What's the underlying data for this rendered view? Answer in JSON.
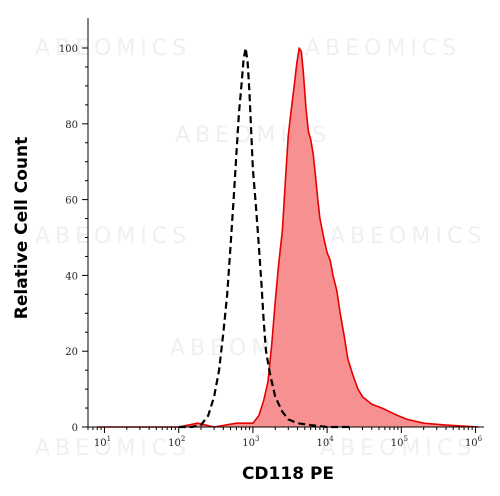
{
  "chart_data": {
    "type": "area",
    "title": "",
    "xlabel": "CD118 PE",
    "ylabel": "Relative Cell Count",
    "x_scale": "log",
    "xlim": [
      6,
      1300000
    ],
    "ylim": [
      0,
      100
    ],
    "x_ticks": [
      {
        "value": 10,
        "base": "10",
        "exp": "1"
      },
      {
        "value": 100,
        "base": "10",
        "exp": "2"
      },
      {
        "value": 1000,
        "base": "10",
        "exp": "3"
      },
      {
        "value": 10000,
        "base": "10",
        "exp": "4"
      },
      {
        "value": 100000,
        "base": "10",
        "exp": "5"
      },
      {
        "value": 1000000,
        "base": "10",
        "exp": "6"
      }
    ],
    "y_ticks": [
      0,
      20,
      40,
      60,
      80,
      100
    ],
    "grid": false,
    "watermark": "ABEOMICS",
    "series": [
      {
        "style": "dashed-black",
        "color": "#000000",
        "filled": false,
        "points": [
          [
            100,
            0
          ],
          [
            150,
            0
          ],
          [
            200,
            0.5
          ],
          [
            250,
            3
          ],
          [
            300,
            8
          ],
          [
            350,
            15
          ],
          [
            400,
            25
          ],
          [
            450,
            35
          ],
          [
            500,
            48
          ],
          [
            550,
            60
          ],
          [
            600,
            72
          ],
          [
            650,
            83
          ],
          [
            700,
            90
          ],
          [
            750,
            97
          ],
          [
            800,
            100
          ],
          [
            850,
            96
          ],
          [
            900,
            88
          ],
          [
            950,
            78
          ],
          [
            1000,
            68
          ],
          [
            1100,
            58
          ],
          [
            1200,
            48
          ],
          [
            1300,
            38
          ],
          [
            1400,
            28
          ],
          [
            1500,
            20
          ],
          [
            1700,
            14
          ],
          [
            2000,
            8
          ],
          [
            2500,
            4
          ],
          [
            3000,
            2
          ],
          [
            4000,
            1
          ],
          [
            6000,
            0.5
          ],
          [
            10000,
            0
          ],
          [
            20000,
            0
          ]
        ]
      },
      {
        "style": "filled-red",
        "color": "#e60000",
        "fill_color": "#f79090",
        "filled": true,
        "points": [
          [
            8,
            0
          ],
          [
            100,
            0
          ],
          [
            180,
            1
          ],
          [
            300,
            0
          ],
          [
            600,
            1
          ],
          [
            1000,
            1
          ],
          [
            1200,
            3
          ],
          [
            1400,
            7
          ],
          [
            1600,
            12
          ],
          [
            1800,
            22
          ],
          [
            2000,
            33
          ],
          [
            2200,
            42
          ],
          [
            2500,
            52
          ],
          [
            2800,
            68
          ],
          [
            3000,
            77
          ],
          [
            3300,
            84
          ],
          [
            3600,
            90
          ],
          [
            3900,
            96
          ],
          [
            4200,
            100
          ],
          [
            4500,
            99
          ],
          [
            4800,
            93
          ],
          [
            5200,
            84
          ],
          [
            5600,
            78
          ],
          [
            6000,
            76
          ],
          [
            6500,
            72
          ],
          [
            7000,
            66
          ],
          [
            7500,
            60
          ],
          [
            8000,
            55
          ],
          [
            9000,
            50
          ],
          [
            10000,
            46
          ],
          [
            11000,
            44
          ],
          [
            12000,
            40
          ],
          [
            13500,
            36
          ],
          [
            15000,
            30
          ],
          [
            17000,
            24
          ],
          [
            19000,
            18
          ],
          [
            22000,
            14
          ],
          [
            26000,
            10
          ],
          [
            30000,
            8
          ],
          [
            40000,
            6
          ],
          [
            55000,
            5
          ],
          [
            70000,
            4
          ],
          [
            90000,
            3
          ],
          [
            120000,
            2
          ],
          [
            200000,
            1
          ],
          [
            400000,
            0.5
          ],
          [
            1100000,
            0
          ]
        ]
      }
    ]
  }
}
